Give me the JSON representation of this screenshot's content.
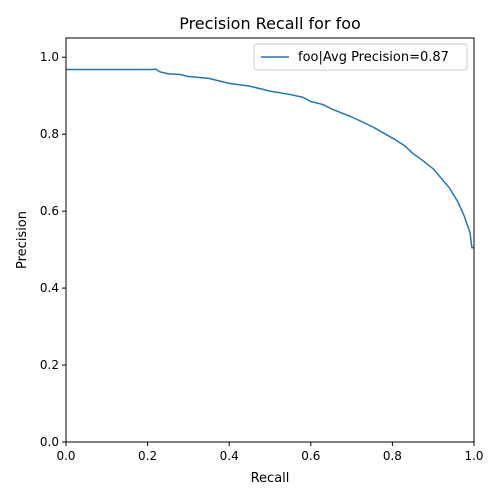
{
  "chart_data": {
    "type": "line",
    "title": "Precision Recall for foo",
    "xlabel": "Recall",
    "ylabel": "Precision",
    "xlim": [
      0.0,
      1.0
    ],
    "ylim": [
      0.0,
      1.05
    ],
    "xticks": [
      "0.0",
      "0.2",
      "0.4",
      "0.6",
      "0.8",
      "1.0"
    ],
    "yticks": [
      "0.0",
      "0.2",
      "0.4",
      "0.6",
      "0.8",
      "1.0"
    ],
    "grid": false,
    "legend_position": "top-right",
    "series": [
      {
        "name": "foo|Avg Precision=0.87",
        "color": "#1f77b4",
        "x": [
          0.0,
          0.05,
          0.1,
          0.15,
          0.2,
          0.21,
          0.22,
          0.23,
          0.25,
          0.28,
          0.3,
          0.35,
          0.4,
          0.45,
          0.5,
          0.55,
          0.58,
          0.6,
          0.63,
          0.65,
          0.7,
          0.75,
          0.8,
          0.83,
          0.85,
          0.87,
          0.9,
          0.92,
          0.94,
          0.96,
          0.975,
          0.98,
          0.985,
          0.99,
          0.993,
          0.995,
          0.996,
          1.0
        ],
        "y": [
          0.968,
          0.968,
          0.968,
          0.968,
          0.968,
          0.968,
          0.969,
          0.962,
          0.957,
          0.955,
          0.95,
          0.945,
          0.932,
          0.925,
          0.912,
          0.903,
          0.896,
          0.885,
          0.877,
          0.866,
          0.845,
          0.82,
          0.79,
          0.77,
          0.75,
          0.735,
          0.71,
          0.685,
          0.66,
          0.625,
          0.59,
          0.575,
          0.56,
          0.545,
          0.52,
          0.505,
          0.505,
          0.505
        ]
      }
    ]
  }
}
